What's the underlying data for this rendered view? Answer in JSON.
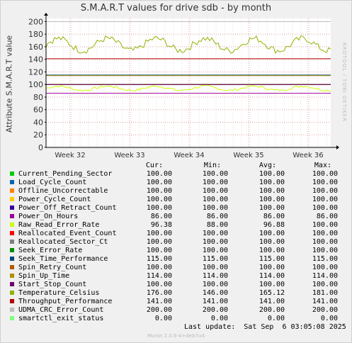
{
  "chart_data": {
    "type": "line",
    "title": "S.M.A.R.T values for drive sdb - by month",
    "ylabel": "Attribute S.M.A.R.T value",
    "ylim": [
      0,
      205
    ],
    "yticks": [
      0,
      20,
      40,
      60,
      80,
      100,
      120,
      140,
      160,
      180,
      200
    ],
    "xticks": [
      "Week 32",
      "Week 33",
      "Week 34",
      "Week 35",
      "Week 36"
    ],
    "grid": true,
    "series": [
      {
        "name": "Current_Pending_Sector",
        "color": "#00cc00",
        "cur": "100.00",
        "min": "100.00",
        "avg": "100.00",
        "max": "100.00",
        "value": 100
      },
      {
        "name": "Load_Cycle_Count",
        "color": "#0066b3",
        "cur": "100.00",
        "min": "100.00",
        "avg": "100.00",
        "max": "100.00",
        "value": 100
      },
      {
        "name": "Offline_Uncorrectable",
        "color": "#ff8000",
        "cur": "100.00",
        "min": "100.00",
        "avg": "100.00",
        "max": "100.00",
        "value": 100
      },
      {
        "name": "Power_Cycle_Count",
        "color": "#ffcc00",
        "cur": "100.00",
        "min": "100.00",
        "avg": "100.00",
        "max": "100.00",
        "value": 100
      },
      {
        "name": "Power_Off_Retract_Count",
        "color": "#330099",
        "cur": "100.00",
        "min": "100.00",
        "avg": "100.00",
        "max": "100.00",
        "value": 100
      },
      {
        "name": "Power_On_Hours",
        "color": "#990099",
        "cur": "86.00",
        "min": "86.00",
        "avg": "86.00",
        "max": "86.00",
        "value": 86
      },
      {
        "name": "Raw_Read_Error_Rate",
        "color": "#ccff00",
        "cur": "96.38",
        "min": "88.00",
        "avg": "96.88",
        "max": "100.00",
        "value": 97,
        "noisy": true,
        "lo": 88,
        "hi": 100
      },
      {
        "name": "Reallocated_Event_Count",
        "color": "#ff0000",
        "cur": "100.00",
        "min": "100.00",
        "avg": "100.00",
        "max": "100.00",
        "value": 100
      },
      {
        "name": "Reallocated_Sector_Ct",
        "color": "#808080",
        "cur": "100.00",
        "min": "100.00",
        "avg": "100.00",
        "max": "100.00",
        "value": 100
      },
      {
        "name": "Seek_Error_Rate",
        "color": "#008f00",
        "cur": "100.00",
        "min": "100.00",
        "avg": "100.00",
        "max": "100.00",
        "value": 100
      },
      {
        "name": "Seek_Time_Performance",
        "color": "#00487d",
        "cur": "115.00",
        "min": "115.00",
        "avg": "115.00",
        "max": "115.00",
        "value": 115
      },
      {
        "name": "Spin_Retry_Count",
        "color": "#b35a00",
        "cur": "100.00",
        "min": "100.00",
        "avg": "100.00",
        "max": "100.00",
        "value": 100
      },
      {
        "name": "Spin_Up_Time",
        "color": "#b38f00",
        "cur": "114.00",
        "min": "114.00",
        "avg": "114.00",
        "max": "114.00",
        "value": 114
      },
      {
        "name": "Start_Stop_Count",
        "color": "#6b006b",
        "cur": "100.00",
        "min": "100.00",
        "avg": "100.00",
        "max": "100.00",
        "value": 100
      },
      {
        "name": "Temperature_Celsius",
        "color": "#8fb300",
        "cur": "176.00",
        "min": "146.00",
        "avg": "165.12",
        "max": "181.00",
        "value": 165,
        "noisy": true,
        "lo": 146,
        "hi": 181
      },
      {
        "name": "Throughput_Performance",
        "color": "#b30000",
        "cur": "141.00",
        "min": "141.00",
        "avg": "141.00",
        "max": "141.00",
        "value": 141
      },
      {
        "name": "UDMA_CRC_Error_Count",
        "color": "#bebebe",
        "cur": "200.00",
        "min": "200.00",
        "avg": "200.00",
        "max": "200.00",
        "value": 200
      },
      {
        "name": "smartctl_exit_status",
        "color": "#80ff80",
        "cur": "0.00",
        "min": "0.00",
        "avg": "0.00",
        "max": "0.00",
        "value": 0
      }
    ]
  },
  "legend_headers": {
    "cur": "Cur:",
    "min": "Min:",
    "avg": "Avg:",
    "max": "Max:"
  },
  "last_update": "Last update:  Sat Sep  6 03:05:08 2025",
  "watermark": "RRDTOOL / TOBI OETIKER",
  "footer": "Munin 2.0.6-4+deb7u4",
  "colors": {
    "background": "#f0f0f0",
    "plot": "#ffffff",
    "grid": "#e0a0a0",
    "axis": "#000000"
  }
}
